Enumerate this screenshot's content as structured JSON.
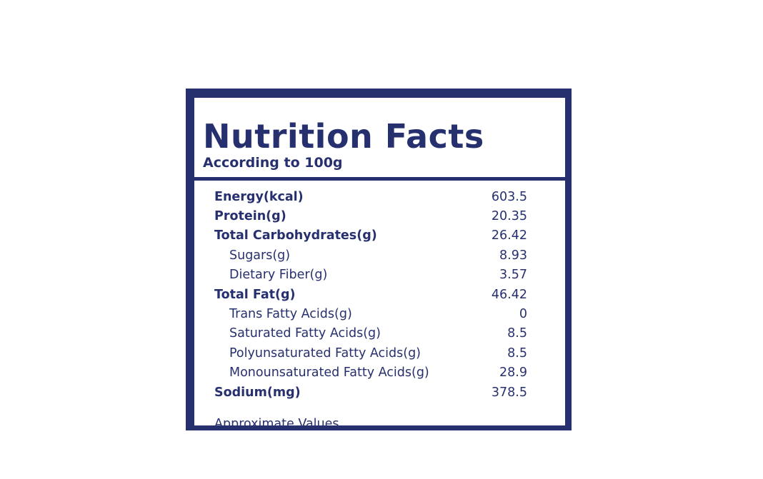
{
  "label": {
    "title": "Nutrition Facts",
    "subtitle": "According to 100g",
    "rows": [
      {
        "label": "Energy(kcal)",
        "value": "603.5",
        "level": "main"
      },
      {
        "label": "Protein(g)",
        "value": "20.35",
        "level": "main"
      },
      {
        "label": "Total Carbohydrates(g)",
        "value": "26.42",
        "level": "main"
      },
      {
        "label": "Sugars(g)",
        "value": "8.93",
        "level": "sub"
      },
      {
        "label": "Dietary Fiber(g)",
        "value": "3.57",
        "level": "sub"
      },
      {
        "label": "Total Fat(g)",
        "value": "46.42",
        "level": "main"
      },
      {
        "label": "Trans Fatty Acids(g)",
        "value": "0",
        "level": "sub"
      },
      {
        "label": "Saturated Fatty Acids(g)",
        "value": "8.5",
        "level": "sub"
      },
      {
        "label": "Polyunsaturated Fatty Acids(g)",
        "value": "8.5",
        "level": "sub"
      },
      {
        "label": "Monounsaturated Fatty Acids(g)",
        "value": "28.9",
        "level": "sub"
      },
      {
        "label": "Sodium(mg)",
        "value": "378.5",
        "level": "main"
      }
    ],
    "footnote": "Approximate Values"
  },
  "colors": {
    "ink": "#27306f",
    "background": "#ffffff"
  }
}
